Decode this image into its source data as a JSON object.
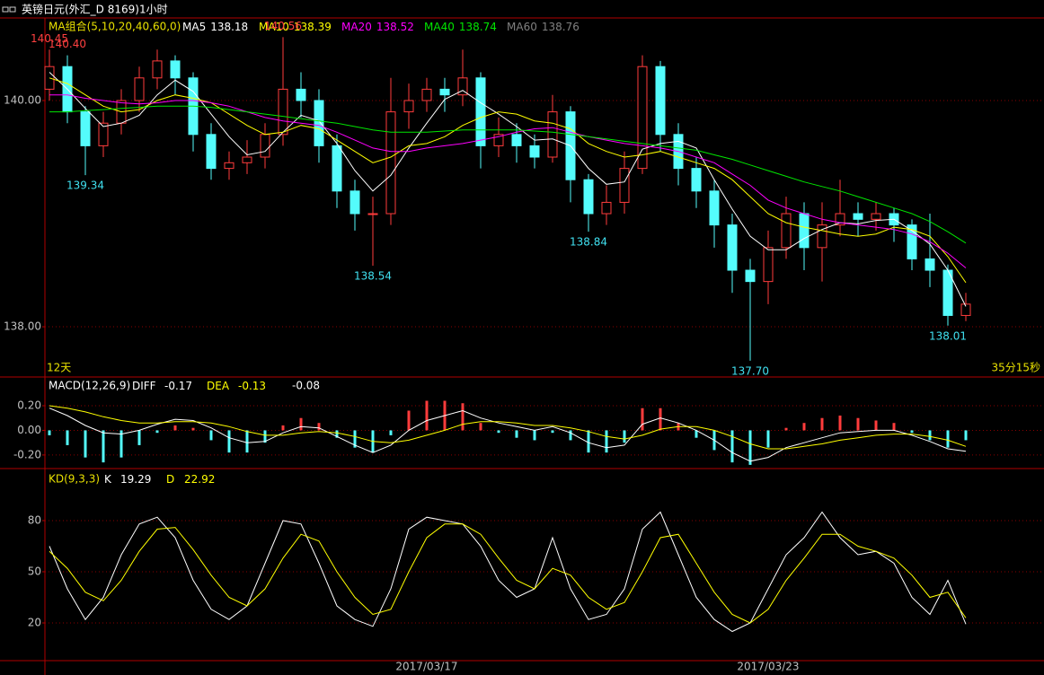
{
  "title": "英镑日元(外汇_D 8169)1小时",
  "chart_data": [
    {
      "type": "candlestick",
      "label": "MA组合(5,10,20,40,60,0)",
      "left_note": "12天",
      "right_note": "35分15秒",
      "up_color": "#ff3c3c",
      "down_color": "#54fcfc",
      "categories": [
        null,
        null,
        null,
        null,
        null,
        null,
        null,
        null,
        null,
        null,
        null,
        null,
        null,
        null,
        null,
        null,
        null,
        null,
        null,
        null,
        null,
        "2017/03/17",
        null,
        null,
        null,
        null,
        null,
        null,
        null,
        null,
        null,
        null,
        null,
        null,
        null,
        null,
        null,
        null,
        null,
        null,
        "2017/03/23",
        null,
        null,
        null,
        null,
        null,
        null,
        null,
        null,
        null,
        null,
        null
      ],
      "open": [
        140.1,
        140.3,
        139.9,
        139.6,
        139.8,
        140.0,
        140.2,
        140.35,
        140.2,
        139.7,
        139.4,
        139.45,
        139.5,
        139.7,
        140.1,
        140.0,
        139.6,
        139.2,
        139.0,
        139.0,
        139.9,
        140.0,
        140.1,
        140.05,
        140.2,
        139.6,
        139.7,
        139.6,
        139.5,
        139.9,
        139.3,
        139.0,
        139.1,
        139.4,
        140.3,
        139.7,
        139.4,
        139.2,
        138.9,
        138.5,
        138.4,
        138.7,
        139.0,
        138.7,
        138.9,
        139.0,
        138.95,
        139.0,
        138.9,
        138.6,
        138.5,
        138.1
      ],
      "high": [
        140.45,
        140.4,
        139.95,
        139.9,
        140.1,
        140.3,
        140.45,
        140.4,
        140.25,
        139.8,
        139.55,
        139.65,
        139.8,
        140.56,
        140.25,
        140.1,
        139.7,
        139.3,
        139.15,
        140.2,
        140.15,
        140.2,
        140.2,
        140.45,
        140.25,
        139.85,
        139.8,
        139.7,
        140.05,
        139.95,
        139.35,
        139.25,
        139.55,
        140.4,
        140.35,
        139.8,
        139.5,
        139.3,
        139.0,
        138.6,
        138.85,
        139.15,
        139.1,
        139.1,
        139.3,
        139.1,
        139.1,
        139.05,
        138.95,
        139.0,
        138.55,
        138.3
      ],
      "low": [
        140.0,
        139.8,
        139.34,
        139.5,
        139.7,
        139.9,
        140.1,
        140.05,
        139.55,
        139.3,
        139.3,
        139.35,
        139.4,
        139.6,
        139.85,
        139.45,
        139.05,
        138.85,
        138.54,
        138.9,
        139.75,
        139.9,
        139.9,
        139.95,
        139.4,
        139.5,
        139.45,
        139.4,
        139.45,
        139.1,
        138.84,
        138.9,
        139.0,
        139.35,
        139.55,
        139.25,
        139.05,
        138.7,
        138.3,
        137.7,
        138.2,
        138.6,
        138.5,
        138.4,
        138.8,
        138.8,
        138.85,
        138.75,
        138.5,
        138.35,
        138.01,
        138.05
      ],
      "close": [
        140.3,
        139.9,
        139.6,
        139.8,
        140.0,
        140.2,
        140.35,
        140.2,
        139.7,
        139.4,
        139.45,
        139.5,
        139.7,
        140.1,
        140.0,
        139.6,
        139.2,
        139.0,
        139.0,
        139.9,
        140.0,
        140.1,
        140.05,
        140.2,
        139.6,
        139.7,
        139.6,
        139.5,
        139.9,
        139.3,
        139.0,
        139.1,
        139.4,
        140.3,
        139.7,
        139.4,
        139.2,
        138.9,
        138.5,
        138.4,
        138.7,
        139.0,
        138.7,
        138.9,
        139.0,
        138.95,
        139.0,
        138.9,
        138.6,
        138.5,
        138.1,
        138.2
      ],
      "series": [
        {
          "name": "MA5",
          "color": "#ffffff",
          "values": [
            140.25,
            140.1,
            139.93,
            139.77,
            139.8,
            139.87,
            140.05,
            140.18,
            140.08,
            139.88,
            139.68,
            139.52,
            139.55,
            139.72,
            139.87,
            139.82,
            139.62,
            139.38,
            139.2,
            139.34,
            139.58,
            139.8,
            140.01,
            140.09,
            139.98,
            139.88,
            139.77,
            139.65,
            139.66,
            139.6,
            139.4,
            139.26,
            139.28,
            139.57,
            139.62,
            139.64,
            139.58,
            139.3,
            139.04,
            138.8,
            138.68,
            138.68,
            138.78,
            138.86,
            138.92,
            138.91,
            138.94,
            138.95,
            138.85,
            138.73,
            138.5,
            138.18
          ]
        },
        {
          "name": "MA10",
          "color": "#ffff00",
          "values": [
            140.2,
            140.15,
            140.05,
            139.95,
            139.9,
            139.92,
            140.0,
            140.05,
            140.02,
            139.98,
            139.88,
            139.78,
            139.7,
            139.72,
            139.78,
            139.75,
            139.65,
            139.55,
            139.45,
            139.5,
            139.6,
            139.62,
            139.68,
            139.78,
            139.85,
            139.9,
            139.88,
            139.82,
            139.8,
            139.75,
            139.62,
            139.55,
            139.5,
            139.52,
            139.55,
            139.5,
            139.45,
            139.4,
            139.3,
            139.15,
            139.0,
            138.92,
            138.88,
            138.85,
            138.82,
            138.8,
            138.82,
            138.88,
            138.86,
            138.8,
            138.62,
            138.39
          ]
        },
        {
          "name": "MA20",
          "color": "#ff00ff",
          "values": [
            140.05,
            140.05,
            140.02,
            140.0,
            139.98,
            139.97,
            139.98,
            140.0,
            140.0,
            139.98,
            139.95,
            139.9,
            139.85,
            139.82,
            139.8,
            139.78,
            139.72,
            139.65,
            139.58,
            139.55,
            139.55,
            139.58,
            139.6,
            139.62,
            139.65,
            139.68,
            139.72,
            139.75,
            139.76,
            139.72,
            139.68,
            139.65,
            139.62,
            139.6,
            139.58,
            139.55,
            139.5,
            139.45,
            139.35,
            139.25,
            139.12,
            139.05,
            139.0,
            138.95,
            138.92,
            138.9,
            138.88,
            138.86,
            138.82,
            138.75,
            138.65,
            138.52
          ]
        },
        {
          "name": "MA40",
          "color": "#00e600",
          "values": [
            139.9,
            139.9,
            139.91,
            139.92,
            139.93,
            139.94,
            139.95,
            139.95,
            139.95,
            139.94,
            139.92,
            139.9,
            139.88,
            139.86,
            139.84,
            139.82,
            139.8,
            139.77,
            139.74,
            139.72,
            139.72,
            139.72,
            139.73,
            139.74,
            139.74,
            139.74,
            139.74,
            139.73,
            139.72,
            139.7,
            139.68,
            139.66,
            139.64,
            139.62,
            139.6,
            139.58,
            139.56,
            139.52,
            139.48,
            139.43,
            139.38,
            139.33,
            139.28,
            139.24,
            139.2,
            139.15,
            139.1,
            139.05,
            139.0,
            138.93,
            138.84,
            138.74
          ]
        },
        {
          "name": "MA60",
          "color": "#808080",
          "values": [
            null,
            null,
            null,
            null,
            null,
            null,
            null,
            null,
            null,
            null,
            null,
            null,
            null,
            null,
            null,
            null,
            null,
            null,
            null,
            null,
            null,
            null,
            null,
            null,
            null,
            null,
            null,
            null,
            null,
            null,
            null,
            null,
            null,
            null,
            null,
            null,
            null,
            null,
            null,
            null,
            null,
            null,
            null,
            null,
            null,
            null,
            null,
            null,
            null,
            null,
            null,
            138.76
          ]
        }
      ],
      "annotations": [
        {
          "value": 140.56,
          "label": "140.56"
        },
        {
          "value": 140.45,
          "label": "140.45"
        },
        {
          "value": 140.4,
          "label": "140.40"
        },
        {
          "value": 139.34,
          "label": "139.34"
        },
        {
          "value": 138.54,
          "label": "138.54"
        },
        {
          "value": 138.84,
          "label": "138.84"
        },
        {
          "value": 137.7,
          "label": "137.70"
        },
        {
          "value": 138.01,
          "label": "138.01"
        }
      ],
      "ylim": [
        137.556,
        140.73
      ],
      "yticks": [
        {
          "value": 140,
          "label": "140.00"
        },
        {
          "value": 138,
          "label": "138.00"
        }
      ],
      "grid": true
    },
    {
      "type": "macd",
      "label": "MACD(12,26,9)",
      "up_color": "#ff3c3c",
      "down_color": "#54fcfc",
      "series": [
        {
          "name": "DIFF",
          "color": "#ffffff",
          "values": [
            0.18,
            0.12,
            0.04,
            -0.02,
            -0.03,
            0.0,
            0.05,
            0.09,
            0.08,
            0.02,
            -0.06,
            -0.1,
            -0.09,
            -0.02,
            0.03,
            0.02,
            -0.05,
            -0.12,
            -0.18,
            -0.12,
            0.0,
            0.08,
            0.12,
            0.16,
            0.1,
            0.06,
            0.03,
            0.0,
            0.03,
            -0.02,
            -0.1,
            -0.14,
            -0.12,
            0.05,
            0.1,
            0.06,
            0.0,
            -0.08,
            -0.18,
            -0.25,
            -0.22,
            -0.14,
            -0.1,
            -0.06,
            -0.02,
            -0.01,
            0.0,
            0.0,
            -0.04,
            -0.09,
            -0.15,
            -0.17
          ]
        },
        {
          "name": "DEA",
          "color": "#ffff00",
          "values": [
            0.2,
            0.18,
            0.15,
            0.11,
            0.08,
            0.06,
            0.06,
            0.07,
            0.07,
            0.06,
            0.03,
            -0.01,
            -0.04,
            -0.04,
            -0.02,
            -0.01,
            -0.02,
            -0.05,
            -0.09,
            -0.1,
            -0.08,
            -0.04,
            0.0,
            0.05,
            0.07,
            0.07,
            0.06,
            0.04,
            0.04,
            0.02,
            -0.01,
            -0.05,
            -0.07,
            -0.04,
            0.01,
            0.03,
            0.03,
            0.0,
            -0.05,
            -0.11,
            -0.15,
            -0.15,
            -0.13,
            -0.11,
            -0.08,
            -0.06,
            -0.04,
            -0.03,
            -0.03,
            -0.05,
            -0.08,
            -0.13
          ]
        }
      ],
      "macd": [
        -0.04,
        -0.12,
        -0.22,
        -0.26,
        -0.22,
        -0.12,
        -0.02,
        0.04,
        0.02,
        -0.08,
        -0.18,
        -0.18,
        -0.1,
        0.04,
        0.1,
        0.06,
        -0.06,
        -0.14,
        -0.18,
        -0.04,
        0.16,
        0.24,
        0.24,
        0.22,
        0.06,
        -0.02,
        -0.06,
        -0.08,
        -0.02,
        -0.08,
        -0.18,
        -0.18,
        -0.1,
        0.18,
        0.18,
        0.06,
        -0.06,
        -0.16,
        -0.26,
        -0.28,
        -0.14,
        0.02,
        0.06,
        0.1,
        0.12,
        0.1,
        0.08,
        0.06,
        -0.02,
        -0.08,
        -0.14,
        -0.08
      ],
      "ylim": [
        -0.31,
        0.433
      ],
      "yticks": [
        {
          "value": 0.2,
          "label": "0.20"
        },
        {
          "value": 0,
          "label": "0.00"
        },
        {
          "value": -0.2,
          "label": "-0.20"
        }
      ],
      "grid": true
    },
    {
      "type": "kd",
      "label": "KD(9,3,3)",
      "series": [
        {
          "name": "K",
          "color": "#ffffff",
          "values": [
            65,
            40,
            22,
            35,
            60,
            78,
            82,
            70,
            45,
            28,
            22,
            30,
            55,
            80,
            78,
            55,
            30,
            22,
            18,
            40,
            75,
            82,
            80,
            78,
            65,
            45,
            35,
            40,
            70,
            40,
            22,
            25,
            40,
            75,
            85,
            60,
            35,
            22,
            15,
            20,
            40,
            60,
            70,
            85,
            70,
            60,
            62,
            55,
            35,
            25,
            45,
            19.29
          ]
        },
        {
          "name": "D",
          "color": "#ffff00",
          "values": [
            62,
            52,
            38,
            33,
            45,
            62,
            75,
            76,
            63,
            48,
            35,
            30,
            40,
            58,
            72,
            68,
            50,
            35,
            25,
            28,
            50,
            70,
            78,
            78,
            72,
            58,
            45,
            40,
            52,
            48,
            35,
            28,
            32,
            50,
            70,
            72,
            55,
            38,
            25,
            20,
            28,
            45,
            58,
            72,
            72,
            65,
            62,
            58,
            48,
            35,
            38,
            22.92
          ]
        }
      ],
      "ylim": [
        -2.1,
        110.5
      ],
      "yticks": [
        80,
        50,
        20
      ],
      "grid": true
    }
  ]
}
